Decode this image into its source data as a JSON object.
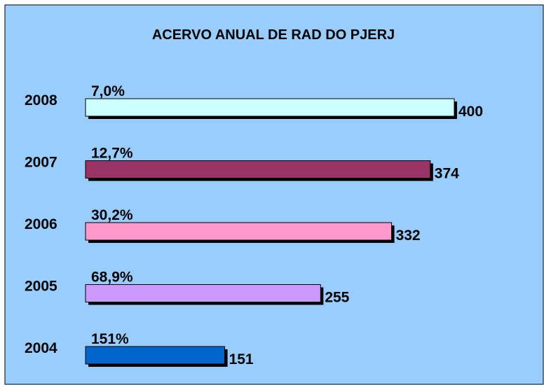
{
  "chart_data": {
    "type": "bar",
    "orientation": "horizontal",
    "title": "ACERVO ANUAL DE RAD DO PJERJ",
    "categories": [
      "2008",
      "2007",
      "2006",
      "2005",
      "2004"
    ],
    "values": [
      400,
      374,
      332,
      255,
      151
    ],
    "colors": [
      "#ccffff",
      "#993366",
      "#ff99cc",
      "#cc99ff",
      "#0066cc"
    ],
    "annotations": [
      "7,0%",
      "12,7%",
      "30,2%",
      "68,9%",
      "151%"
    ]
  }
}
